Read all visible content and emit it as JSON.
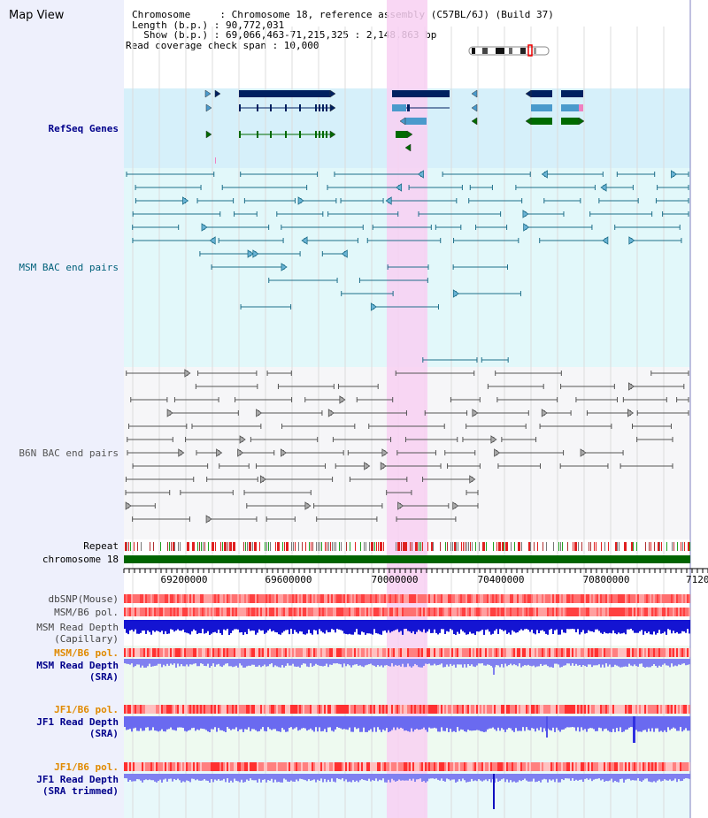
{
  "view_title": "Map View",
  "info": {
    "chromosome_label": "Chromosome     : Chromosome 18, reference assembly (C57BL/6J) (Build 37)",
    "length_label": "Length (b.p.) : 90,772,031",
    "show_label": "  Show (b.p.) : 69,066,463-71,215,325 : 2,148,863 bp",
    "coverage_label": "Read coverage check span : 10,000"
  },
  "tracks": {
    "refseq": "RefSeq Genes",
    "msm_bac": "MSM BAC end pairs",
    "b6n_bac": "B6N BAC end pairs",
    "repeat": "Repeat",
    "chromosome": "chromosome 18",
    "dbsnp": "dbSNP(Mouse)",
    "msm_b6_pol_1": "MSM/B6 pol.",
    "msm_depth_cap_1": "MSM Read Depth",
    "msm_depth_cap_2": "(Capillary)",
    "msm_b6_pol_2": "MSM/B6 pol.",
    "msm_depth_sra_1": "MSM Read Depth",
    "msm_depth_sra_2": "(SRA)",
    "jf1_b6_pol_1": "JF1/B6 pol.",
    "jf1_depth_sra_1": "JF1 Read Depth",
    "jf1_depth_sra_2": "(SRA)",
    "jf1_b6_pol_2": "JF1/B6 pol.",
    "jf1_depth_trim_1": "JF1 Read Depth",
    "jf1_depth_trim_2": "(SRA trimmed)"
  },
  "axis": {
    "ticks": [
      "69200000",
      "69600000",
      "70000000",
      "70400000",
      "70800000",
      "7120"
    ]
  },
  "colors": {
    "refseq_bg": "#d6f0fa",
    "msm_bg": "#e2f8fa",
    "b6n_bg": "#f6f6f8",
    "highlight": "#f8d0f2",
    "chromosome": "#006400",
    "dark_gene": "#002060",
    "light_gene": "#4a9acc",
    "green_gene": "#006a00",
    "msm_line": "#1f6f8a",
    "b6n_line": "#555555",
    "depth_blue": "#1414d2",
    "depth_light": "#8080f0"
  }
}
